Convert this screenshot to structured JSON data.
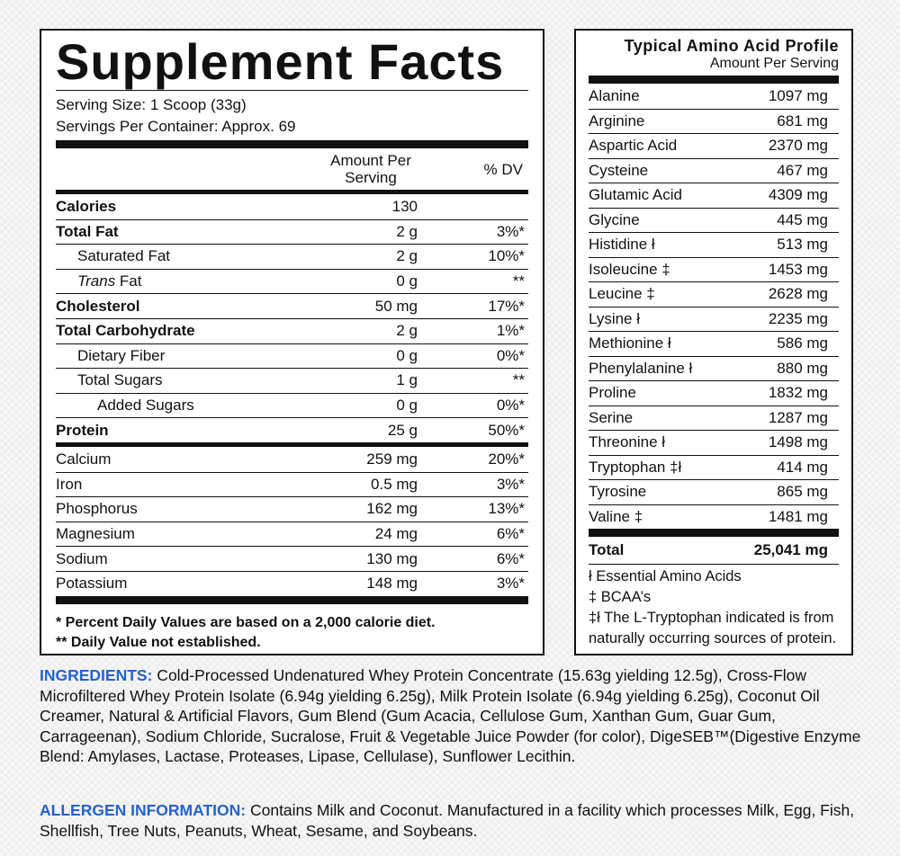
{
  "facts": {
    "title": "Supplement Facts",
    "serving_size": "Serving Size: 1 Scoop (33g)",
    "servings_per_container": "Servings Per Container: Approx. 69",
    "header_amount": "Amount Per Serving",
    "header_dv": "% DV",
    "rows": [
      {
        "name": "Calories",
        "amount": "130",
        "dv": ""
      },
      {
        "name": "Total Fat",
        "amount": "2 g",
        "dv": "3%*"
      },
      {
        "name": "Saturated Fat",
        "amount": "2 g",
        "dv": "10%*"
      },
      {
        "name_italic": "Trans",
        "name": " Fat",
        "amount": "0 g",
        "dv": "**"
      },
      {
        "name": "Cholesterol",
        "amount": "50 mg",
        "dv": "17%*"
      },
      {
        "name": "Total Carbohydrate",
        "amount": "2 g",
        "dv": "1%*"
      },
      {
        "name": "Dietary Fiber",
        "amount": "0 g",
        "dv": "0%*"
      },
      {
        "name": "Total Sugars",
        "amount": "1 g",
        "dv": "**"
      },
      {
        "name": "Added Sugars",
        "amount": "0 g",
        "dv": "0%*"
      },
      {
        "name": "Protein",
        "amount": "25 g",
        "dv": "50%*"
      },
      {
        "name": "Calcium",
        "amount": "259 mg",
        "dv": "20%*"
      },
      {
        "name": "Iron",
        "amount": "0.5 mg",
        "dv": "3%*"
      },
      {
        "name": "Phosphorus",
        "amount": "162 mg",
        "dv": "13%*"
      },
      {
        "name": "Magnesium",
        "amount": "24 mg",
        "dv": "6%*"
      },
      {
        "name": "Sodium",
        "amount": "130 mg",
        "dv": "6%*"
      },
      {
        "name": "Potassium",
        "amount": "148 mg",
        "dv": "3%*"
      }
    ],
    "footnote_1": "* Percent Daily Values are based on a 2,000 calorie diet.",
    "footnote_2": "** Daily Value not established."
  },
  "amino": {
    "title": "Typical Amino Acid Profile",
    "subtitle": "Amount Per Serving",
    "rows": [
      {
        "name": "Alanine",
        "value": "1097 mg"
      },
      {
        "name": "Arginine",
        "value": "681 mg"
      },
      {
        "name": "Aspartic Acid",
        "value": "2370 mg"
      },
      {
        "name": "Cysteine",
        "value": "467 mg"
      },
      {
        "name": "Glutamic Acid",
        "value": "4309 mg"
      },
      {
        "name": "Glycine",
        "value": "445 mg"
      },
      {
        "name": "Histidine ł",
        "value": "513 mg"
      },
      {
        "name": "Isoleucine ‡",
        "value": "1453 mg"
      },
      {
        "name": "Leucine ‡",
        "value": "2628 mg"
      },
      {
        "name": "Lysine ł",
        "value": "2235 mg"
      },
      {
        "name": "Methionine ł",
        "value": "586 mg"
      },
      {
        "name": "Phenylalanine ł",
        "value": "880 mg"
      },
      {
        "name": "Proline",
        "value": "1832 mg"
      },
      {
        "name": "Serine",
        "value": "1287 mg"
      },
      {
        "name": "Threonine ł",
        "value": "1498 mg"
      },
      {
        "name": "Tryptophan ‡ł",
        "value": "414 mg"
      },
      {
        "name": "Tyrosine",
        "value": "865 mg"
      },
      {
        "name": "Valine ‡",
        "value": "1481 mg"
      }
    ],
    "total_label": "Total",
    "total_value": "25,041 mg",
    "legend_1": "ł Essential Amino Acids",
    "legend_2": "‡ BCAA’s",
    "legend_3": "‡ł The L-Tryptophan indicated is from naturally occurring sources of protein."
  },
  "ingredients": {
    "label": "INGREDIENTS:",
    "text": " Cold-Processed Undenatured Whey Protein Concentrate (15.63g yielding 12.5g), Cross-Flow Microfiltered Whey Protein Isolate (6.94g yielding 6.25g), Milk Protein Isolate (6.94g yielding 6.25g), Coconut Oil Creamer, Natural & Artificial Flavors, Gum Blend (Gum Acacia, Cellulose Gum, Xanthan Gum, Guar Gum, Carrageenan), Sodium Chloride, Sucralose, Fruit & Vegetable Juice Powder (for color), DigeSEB™(Digestive Enzyme Blend: Amylases, Lactase, Proteases, Lipase, Cellulase), Sunflower Lecithin."
  },
  "allergen": {
    "label": "ALLERGEN INFORMATION:",
    "text": " Contains Milk and Coconut. Manufactured in a facility which processes Milk, Egg, Fish, Shellfish, Tree Nuts, Peanuts, Wheat, Sesame, and Soybeans."
  },
  "colors": {
    "label_blue": "#2563c9"
  }
}
